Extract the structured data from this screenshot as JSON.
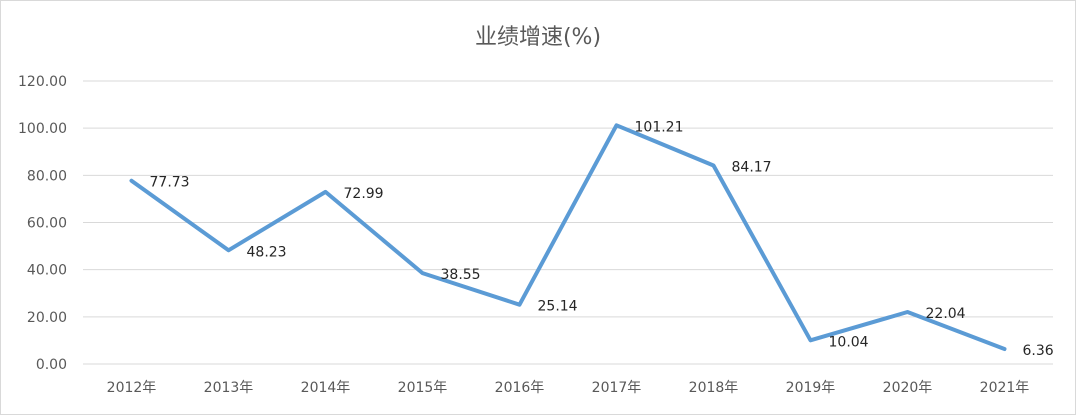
{
  "chart_data": {
    "type": "line",
    "title": "业绩增速(%)",
    "xlabel": "",
    "ylabel": "",
    "categories": [
      "2012年",
      "2013年",
      "2014年",
      "2015年",
      "2016年",
      "2017年",
      "2018年",
      "2019年",
      "2020年",
      "2021年"
    ],
    "series": [
      {
        "values": [
          77.73,
          48.23,
          72.99,
          38.55,
          25.14,
          101.21,
          84.17,
          10.04,
          22.04,
          6.36
        ],
        "labels": [
          "77.73",
          "48.23",
          "72.99",
          "38.55",
          "25.14",
          "101.21",
          "84.17",
          "10.04",
          "22.04",
          "6.36"
        ],
        "color": "#5b9bd5"
      }
    ],
    "ylim": [
      0,
      120
    ],
    "yticks": [
      "0.00",
      "20.00",
      "40.00",
      "60.00",
      "80.00",
      "100.00",
      "120.00"
    ],
    "grid": true,
    "legend": "none"
  }
}
